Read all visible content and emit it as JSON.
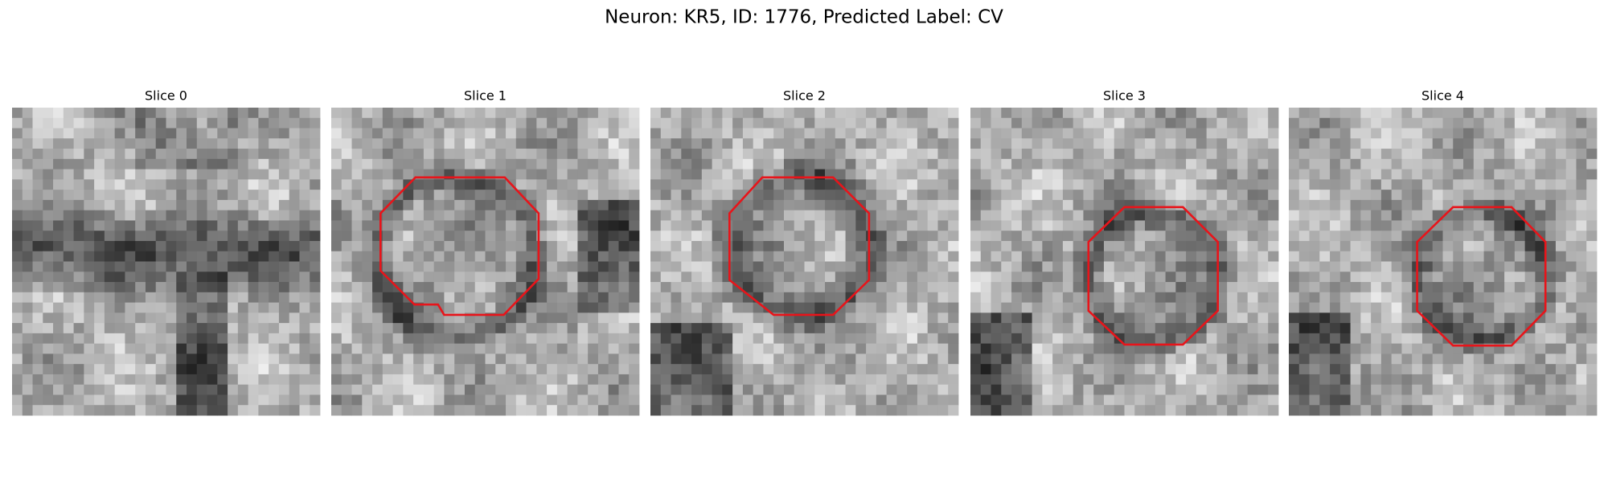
{
  "figure": {
    "title": "Neuron: KR5, ID: 1776, Predicted Label: CV",
    "panels": [
      {
        "title": "Slice 0"
      },
      {
        "title": "Slice 1"
      },
      {
        "title": "Slice 2"
      },
      {
        "title": "Slice 3"
      },
      {
        "title": "Slice 4"
      }
    ]
  }
}
